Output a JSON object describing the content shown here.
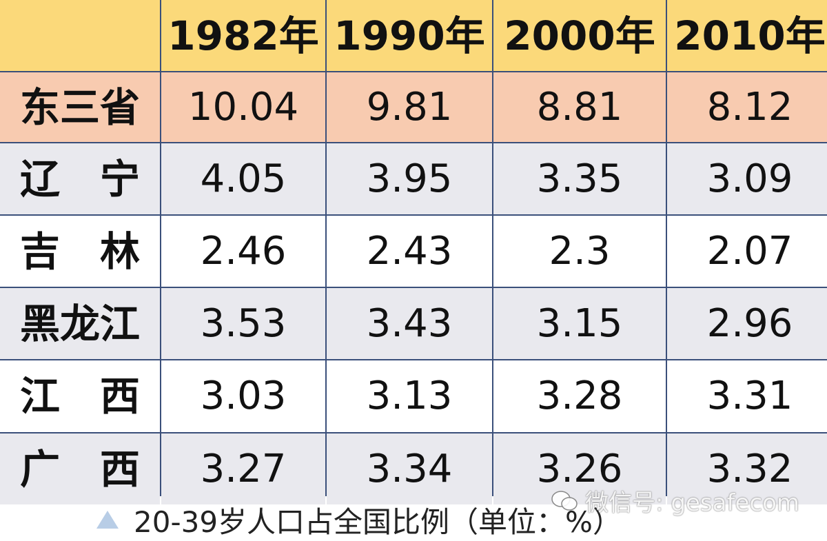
{
  "chart_data": {
    "type": "table",
    "columns": [
      "",
      "1982年",
      "1990年",
      "2000年",
      "2010年"
    ],
    "rows": [
      {
        "label": "东三省",
        "values": [
          "10.04",
          "9.81",
          "8.81",
          "8.12"
        ]
      },
      {
        "label": "辽　宁",
        "values": [
          "4.05",
          "3.95",
          "3.35",
          "3.09"
        ]
      },
      {
        "label": "吉　林",
        "values": [
          "2.46",
          "2.43",
          "2.3",
          "2.07"
        ]
      },
      {
        "label": "黑龙江",
        "values": [
          "3.53",
          "3.43",
          "3.15",
          "2.96"
        ]
      },
      {
        "label": "江　西",
        "values": [
          "3.03",
          "3.13",
          "3.28",
          "3.31"
        ]
      },
      {
        "label": "广　西",
        "values": [
          "3.27",
          "3.34",
          "3.26",
          "3.32"
        ]
      }
    ],
    "caption": "20-39岁人口占全国比例（单位：%）"
  },
  "watermark": "微信号: gesafecom",
  "icons": {
    "caption_marker": "triangle-icon",
    "watermark_logo": "wechat-icon"
  },
  "colors": {
    "header_bg": "#fbd97a",
    "highlight_row_bg": "#f8cbb0",
    "alt_row_bg": "#e9e9ee",
    "grid_line": "#3a4f7a",
    "marker": "#b8cde6"
  }
}
